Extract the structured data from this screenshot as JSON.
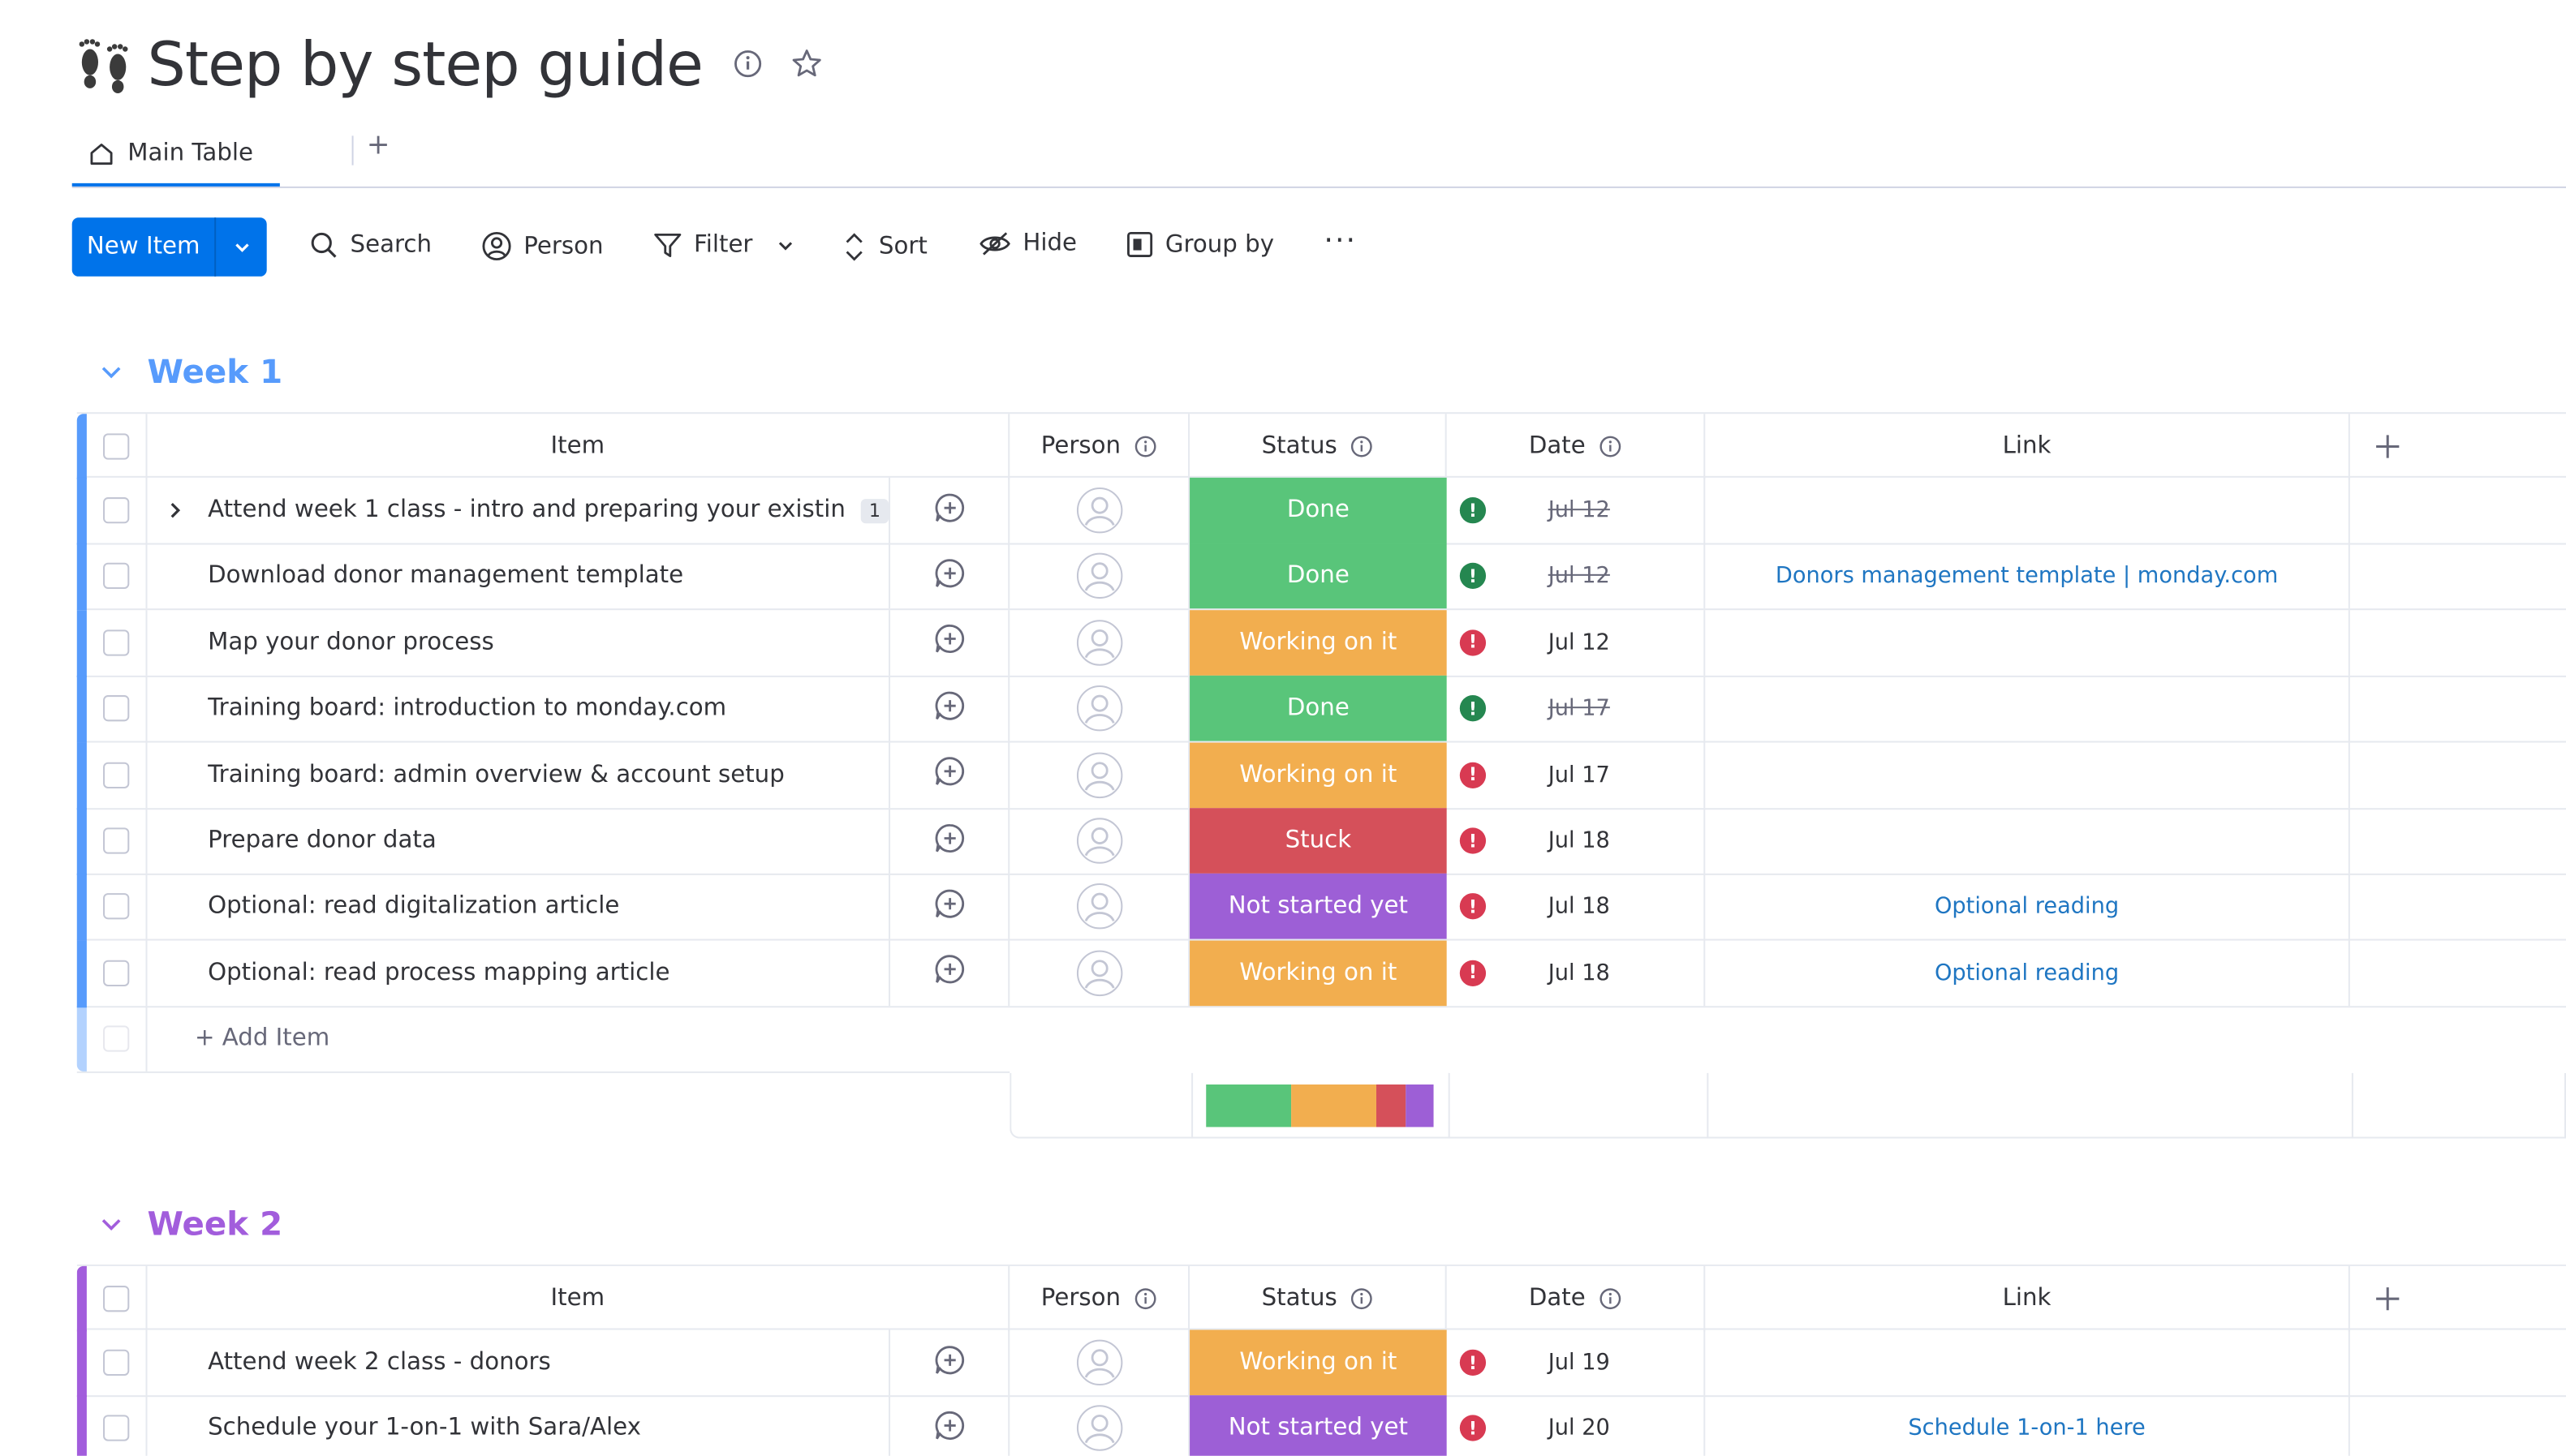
{
  "board": {
    "title": "Step by step guide",
    "emoji_icon": "footprints-icon",
    "tab_label": "Main Table",
    "tab_add": "+"
  },
  "toolbar": {
    "new_item": "New Item",
    "search": "Search",
    "person": "Person",
    "filter": "Filter",
    "sort": "Sort",
    "hide": "Hide",
    "group_by": "Group by",
    "more": "···"
  },
  "columns": {
    "item": "Item",
    "person": "Person",
    "status": "Status",
    "date": "Date",
    "link": "Link",
    "add": "+"
  },
  "colors": {
    "done": "#59c57a",
    "working": "#f2ae4f",
    "stuck": "#d5505a",
    "not_started": "#9d5fd6",
    "alert_green": "#258750",
    "alert_red": "#d83a52",
    "week1": "#579bfc",
    "week2": "#a25ddc",
    "link": "#1f76c2"
  },
  "groups": [
    {
      "name": "Week 1",
      "add_item": "+ Add Item",
      "items": [
        {
          "name": "Attend week 1 class - intro and preparing your existin...",
          "subitems": "1",
          "status": "Done",
          "status_key": "done",
          "date": "Jul 12",
          "date_done": true,
          "link": ""
        },
        {
          "name": "Download donor management template",
          "status": "Done",
          "status_key": "done",
          "date": "Jul 12",
          "date_done": true,
          "link": "Donors management template | monday.com"
        },
        {
          "name": "Map your donor process",
          "status": "Working on it",
          "status_key": "working",
          "date": "Jul 12",
          "date_done": false,
          "link": ""
        },
        {
          "name": "Training board: introduction to monday.com",
          "status": "Done",
          "status_key": "done",
          "date": "Jul 17",
          "date_done": true,
          "link": ""
        },
        {
          "name": "Training board: admin overview & account setup",
          "status": "Working on it",
          "status_key": "working",
          "date": "Jul 17",
          "date_done": false,
          "link": ""
        },
        {
          "name": "Prepare donor data",
          "status": "Stuck",
          "status_key": "stuck",
          "date": "Jul 18",
          "date_done": false,
          "link": ""
        },
        {
          "name": "Optional: read digitalization article",
          "status": "Not started yet",
          "status_key": "not_started",
          "date": "Jul 18",
          "date_done": false,
          "link": "Optional reading"
        },
        {
          "name": "Optional: read process mapping article",
          "status": "Working on it",
          "status_key": "working",
          "date": "Jul 18",
          "date_done": false,
          "link": "Optional reading"
        }
      ],
      "status_summary": [
        {
          "key": "done",
          "count": 3
        },
        {
          "key": "working",
          "count": 3
        },
        {
          "key": "stuck",
          "count": 1
        },
        {
          "key": "not_started",
          "count": 1
        }
      ]
    },
    {
      "name": "Week 2",
      "items": [
        {
          "name": "Attend week 2 class - donors",
          "status": "Working on it",
          "status_key": "working",
          "date": "Jul 19",
          "date_done": false,
          "link": ""
        },
        {
          "name": "Schedule your 1-on-1 with Sara/Alex",
          "status": "Not started yet",
          "status_key": "not_started",
          "date": "Jul 20",
          "date_done": false,
          "link": "Schedule 1-on-1 here"
        }
      ]
    }
  ]
}
